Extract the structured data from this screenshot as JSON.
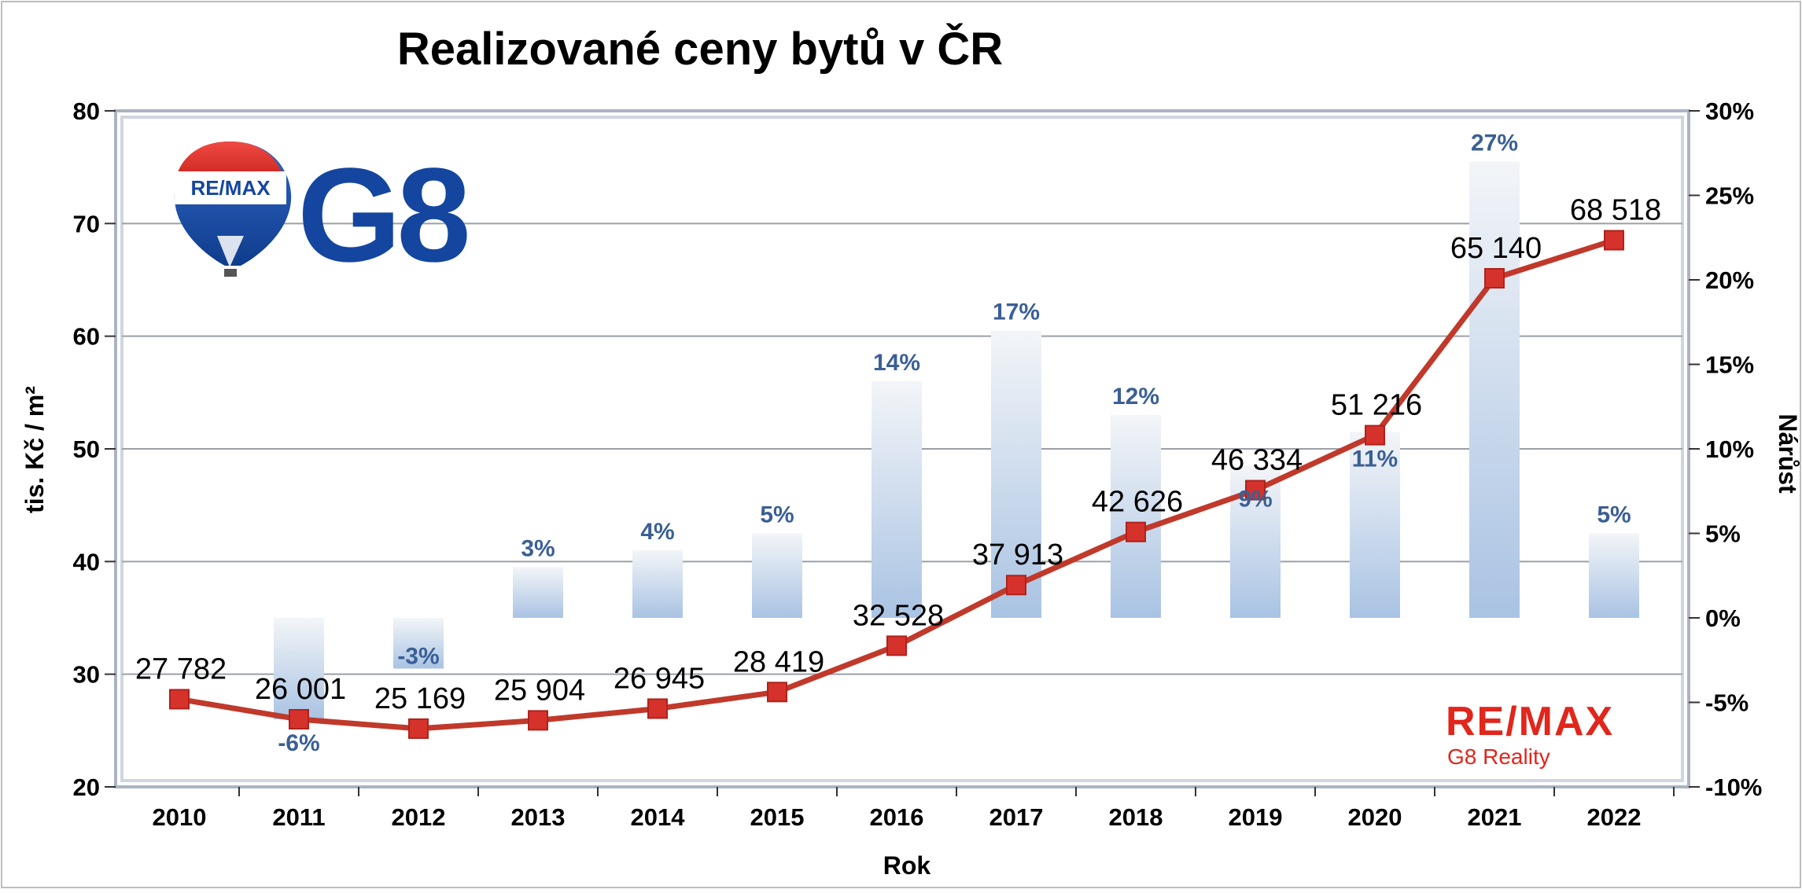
{
  "chart_data": {
    "type": "bar+line",
    "title": "Realizované ceny bytů v ČR",
    "xlabel": "Rok",
    "ylabel_left": "tis. Kč / m²",
    "ylabel_right": "Nárůst",
    "ylim_left": [
      20,
      80
    ],
    "ylim_right": [
      -10,
      30
    ],
    "left_ticks": [
      "80",
      "70",
      "60",
      "50",
      "40",
      "30",
      "20"
    ],
    "right_ticks": [
      "30%",
      "25%",
      "20%",
      "15%",
      "10%",
      "5%",
      "0%",
      "-5%",
      "-10%"
    ],
    "grid": true,
    "categories": [
      "2010",
      "2011",
      "2012",
      "2013",
      "2014",
      "2015",
      "2016",
      "2017",
      "2018",
      "2019",
      "2020",
      "2021",
      "2022"
    ],
    "series": [
      {
        "type": "line",
        "axis": "left",
        "values": [
          27.782,
          26.001,
          25.169,
          25.904,
          26.945,
          28.419,
          32.528,
          37.913,
          42.626,
          46.334,
          51.216,
          65.14,
          68.518
        ],
        "labels": [
          "27 782",
          "26 001",
          "25 169",
          "25 904",
          "26 945",
          "28 419",
          "32 528",
          "37 913",
          "42 626",
          "46 334",
          "51 216",
          "65 140",
          "68 518"
        ]
      },
      {
        "type": "bar",
        "axis": "right",
        "values": [
          null,
          -6,
          -3,
          3,
          4,
          5,
          14,
          17,
          12,
          9,
          11,
          27,
          5
        ],
        "labels": [
          "",
          "-6%",
          "-3%",
          "3%",
          "4%",
          "5%",
          "14%",
          "17%",
          "12%",
          "9%",
          "11%",
          "27%",
          "5%"
        ]
      }
    ]
  },
  "logos": {
    "balloon_text": "RE/MAX",
    "main_logo": "G8",
    "brand_name": "RE/MAX",
    "brand_sub": "G8 Reality"
  },
  "colors": {
    "line": "#c0392b",
    "marker": "#d6322c",
    "bar_label": "#3a5f95",
    "logo_blue": "#1446a0",
    "remax_red": "#e1261c"
  }
}
